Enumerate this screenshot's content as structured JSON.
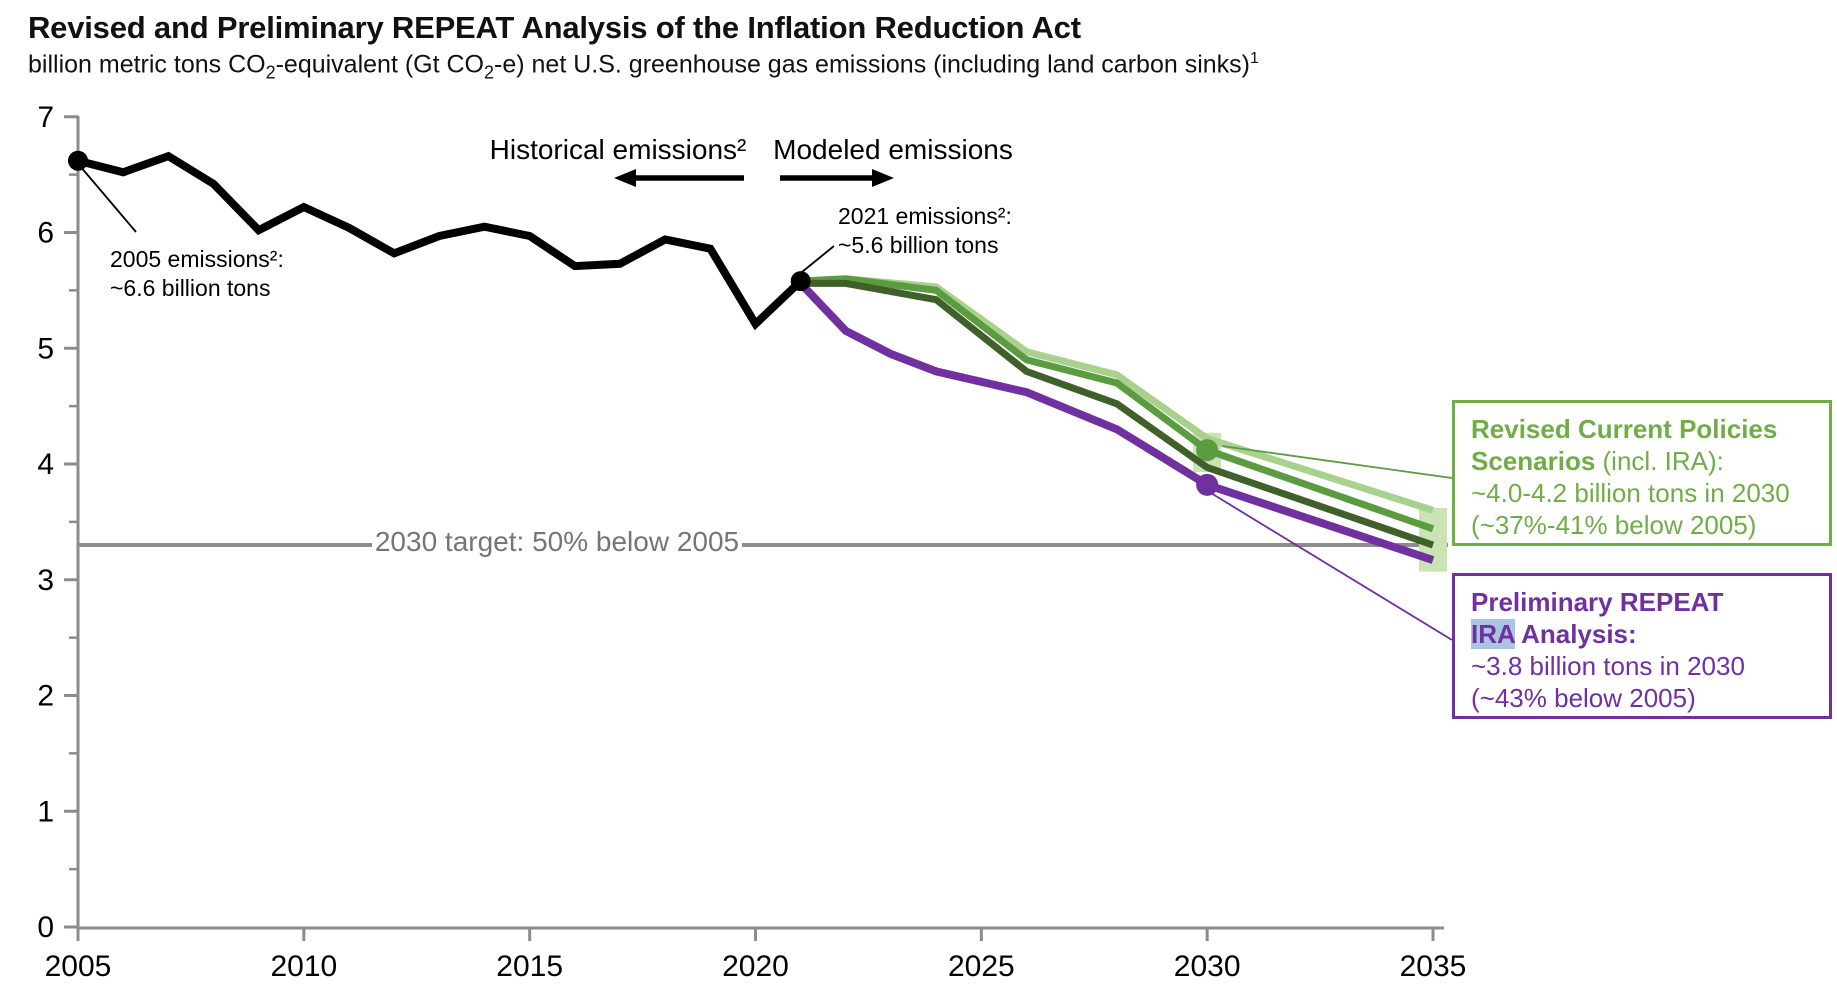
{
  "header": {
    "title": "Revised and Preliminary REPEAT Analysis of the Inflation Reduction Act",
    "subtitle": {
      "p1": "billion metric tons CO",
      "sub1": "2",
      "p2": "-equivalent (Gt CO",
      "sub2": "2",
      "p3": "-e) net U.S. greenhouse gas emissions (including land carbon sinks)",
      "sup": "1"
    }
  },
  "annotations": {
    "emissions_2005_line1": "2005 emissions²:",
    "emissions_2005_line2": "~6.6 billion tons",
    "emissions_2021_line1": "2021 emissions²:",
    "emissions_2021_line2": "~5.6 billion tons",
    "historical_label": "Historical emissions²",
    "modeled_label": "Modeled emissions"
  },
  "legend_green": {
    "l1": "Revised Current Policies",
    "l2_bold": "Scenarios",
    "l2_rest": " (incl. IRA):",
    "l3": "~4.0-4.2 billion tons in 2030",
    "l4": "(~37%-41% below 2005)"
  },
  "legend_purple": {
    "l1": "Preliminary REPEAT",
    "l2_hl": "IRA",
    "l2_rest": " Analysis:",
    "l3": "~3.8 billion tons in 2030",
    "l4": "(~43% below 2005)"
  },
  "chart_data": {
    "type": "line",
    "title": "Revised and Preliminary REPEAT Analysis of the Inflation Reduction Act",
    "ylabel": "billion metric tons CO2-equivalent (Gt CO2-e) net U.S. greenhouse gas emissions",
    "xlim": [
      2005,
      2035
    ],
    "ylim": [
      0,
      7
    ],
    "x_ticks": [
      2005,
      2010,
      2015,
      2020,
      2025,
      2030,
      2035
    ],
    "y_ticks": [
      0,
      1,
      2,
      3,
      4,
      5,
      6,
      7
    ],
    "y_minor_step": 0.5,
    "grid": false,
    "axis_color": "#8c8c8c",
    "series": [
      {
        "name": "historical-emissions",
        "label": "Historical emissions",
        "color": "#000000",
        "width": 8,
        "points": [
          [
            2005,
            6.62
          ],
          [
            2006,
            6.52
          ],
          [
            2007,
            6.66
          ],
          [
            2008,
            6.42
          ],
          [
            2009,
            6.02
          ],
          [
            2010,
            6.22
          ],
          [
            2011,
            6.04
          ],
          [
            2012,
            5.82
          ],
          [
            2013,
            5.97
          ],
          [
            2014,
            6.05
          ],
          [
            2015,
            5.97
          ],
          [
            2016,
            5.71
          ],
          [
            2017,
            5.73
          ],
          [
            2018,
            5.94
          ],
          [
            2019,
            5.86
          ],
          [
            2020,
            5.21
          ],
          [
            2021,
            5.58
          ]
        ]
      },
      {
        "name": "revised-current-policies-high",
        "label": "Revised Current Policies (incl. IRA) - high",
        "color": "#a9d18e",
        "width": 7,
        "points": [
          [
            2021,
            5.58
          ],
          [
            2022,
            5.6
          ],
          [
            2024,
            5.53
          ],
          [
            2026,
            4.97
          ],
          [
            2028,
            4.77
          ],
          [
            2030,
            4.22
          ],
          [
            2035,
            3.6
          ]
        ]
      },
      {
        "name": "revised-current-policies-mid",
        "label": "Revised Current Policies (incl. IRA) - mid",
        "color": "#5b9c40",
        "width": 7,
        "points": [
          [
            2021,
            5.58
          ],
          [
            2022,
            5.6
          ],
          [
            2024,
            5.5
          ],
          [
            2026,
            4.9
          ],
          [
            2028,
            4.7
          ],
          [
            2030,
            4.12
          ],
          [
            2035,
            3.44
          ]
        ]
      },
      {
        "name": "revised-current-policies-low",
        "label": "Revised Current Policies (incl. IRA) - low",
        "color": "#40602a",
        "width": 7,
        "points": [
          [
            2021,
            5.56
          ],
          [
            2022,
            5.56
          ],
          [
            2024,
            5.42
          ],
          [
            2026,
            4.8
          ],
          [
            2028,
            4.52
          ],
          [
            2030,
            3.97
          ],
          [
            2035,
            3.3
          ]
        ]
      },
      {
        "name": "preliminary-repeat-ira",
        "label": "Preliminary REPEAT IRA Analysis",
        "color": "#7030a0",
        "width": 8,
        "points": [
          [
            2021,
            5.56
          ],
          [
            2022,
            5.15
          ],
          [
            2023,
            4.95
          ],
          [
            2024,
            4.8
          ],
          [
            2026,
            4.62
          ],
          [
            2028,
            4.3
          ],
          [
            2030,
            3.82
          ],
          [
            2035,
            3.17
          ]
        ]
      }
    ],
    "markers": [
      {
        "x": 2005,
        "y": 6.62,
        "color": "#000000",
        "r": 10,
        "name": "point-2005-emissions"
      },
      {
        "x": 2021,
        "y": 5.58,
        "color": "#000000",
        "r": 10,
        "name": "point-2021-emissions"
      },
      {
        "x": 2030,
        "y": 4.12,
        "color": "#5b9c40",
        "r": 11,
        "name": "point-2030-revised-current-policies"
      },
      {
        "x": 2030,
        "y": 3.82,
        "color": "#7030a0",
        "r": 11,
        "name": "point-2030-preliminary-ira"
      }
    ],
    "range_bars": [
      {
        "x": 2030,
        "y_low": 3.93,
        "y_high": 4.27,
        "color": "#c9e3b2",
        "name": "range-2030"
      },
      {
        "x": 2035,
        "y_low": 3.07,
        "y_high": 3.62,
        "color": "#c9e3b2",
        "name": "range-2035"
      }
    ],
    "target_line": {
      "value": 3.3,
      "label": "2030 target: 50% below 2005",
      "color": "#8c8c8c"
    }
  }
}
